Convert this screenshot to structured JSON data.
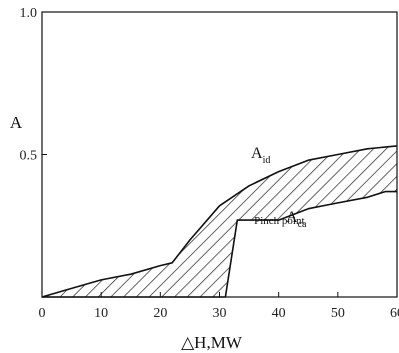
{
  "chart_data": {
    "type": "area",
    "xlabel": "△H,MW",
    "ylabel": "A",
    "xlim": [
      0,
      60
    ],
    "ylim": [
      0,
      1.0
    ],
    "x_ticks": [
      0,
      10,
      20,
      30,
      40,
      50,
      60
    ],
    "x_tick_labels": [
      "0",
      "10",
      "20",
      "30",
      "40",
      "50",
      "60"
    ],
    "y_ticks": [
      0.5,
      1.0
    ],
    "y_tick_labels": [
      "0.5",
      "1.0"
    ],
    "grid": false,
    "series": [
      {
        "label_main": "A",
        "label_sub": "id",
        "x": [
          0,
          5,
          10,
          15,
          20,
          22,
          25,
          30,
          35,
          40,
          45,
          50,
          55,
          60
        ],
        "y": [
          0.0,
          0.03,
          0.06,
          0.08,
          0.11,
          0.12,
          0.2,
          0.32,
          0.39,
          0.44,
          0.48,
          0.5,
          0.52,
          0.53
        ]
      },
      {
        "label_main": "A",
        "label_sub": "ca",
        "x": [
          0,
          20,
          31,
          33,
          40,
          45,
          50,
          55,
          58,
          60
        ],
        "y": [
          0.0,
          0.0,
          0.0,
          0.27,
          0.27,
          0.31,
          0.33,
          0.35,
          0.37,
          0.37
        ]
      }
    ],
    "shading": "hatched region between the two curves",
    "annotations": [
      {
        "text": "Pinch point",
        "x": 35,
        "y": 0.14
      }
    ]
  }
}
